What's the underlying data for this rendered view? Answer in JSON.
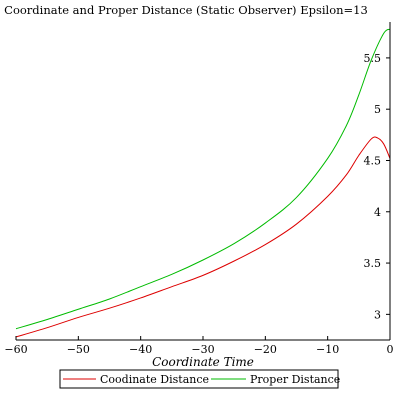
{
  "chart_data": {
    "type": "line",
    "title": "Coordinate and Proper Distance (Static Observer) Epsilon=13",
    "xlabel": "Coordinate Time",
    "ylabel": "",
    "xlim": [
      -60,
      0
    ],
    "ylim": [
      2.75,
      5.85
    ],
    "x_ticks": [
      "−60",
      "−50",
      "−40",
      "−30",
      "−20",
      "−10",
      "0"
    ],
    "y_ticks": [
      "3",
      "3.5",
      "4",
      "4.5",
      "5",
      "5.5"
    ],
    "grid": false,
    "legend_position": "bottom",
    "series": [
      {
        "name": "Coodinate Distance",
        "color": "#dd0000",
        "x": [
          -60,
          -55,
          -50,
          -45,
          -40,
          -35,
          -30,
          -25,
          -20,
          -15,
          -10,
          -7,
          -5,
          -3,
          -2,
          -1,
          0
        ],
        "y": [
          2.78,
          2.87,
          2.97,
          3.06,
          3.16,
          3.27,
          3.38,
          3.52,
          3.68,
          3.88,
          4.15,
          4.36,
          4.55,
          4.71,
          4.72,
          4.66,
          4.52
        ]
      },
      {
        "name": "Proper Distance",
        "color": "#00bb00",
        "x": [
          -60,
          -55,
          -50,
          -45,
          -40,
          -35,
          -30,
          -25,
          -20,
          -15,
          -10,
          -7,
          -5,
          -3,
          -1,
          0
        ],
        "y": [
          2.86,
          2.95,
          3.05,
          3.15,
          3.27,
          3.39,
          3.53,
          3.69,
          3.89,
          4.14,
          4.52,
          4.84,
          5.14,
          5.48,
          5.74,
          5.78
        ]
      }
    ]
  }
}
